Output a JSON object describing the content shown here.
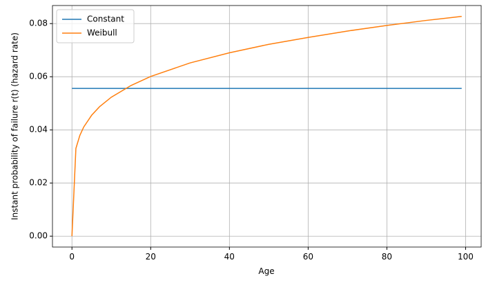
{
  "chart_data": {
    "type": "line",
    "xlabel": "Age",
    "ylabel": "Instant probability of failure r(t) (hazard rate)",
    "series": [
      {
        "name": "Constant",
        "color": "#1f77b4",
        "x": [
          0,
          99
        ],
        "values": [
          0.0556,
          0.0556
        ]
      },
      {
        "name": "Weibull",
        "color": "#ff7f0e",
        "x": [
          0,
          1,
          2,
          3,
          5,
          7,
          10,
          15,
          20,
          30,
          40,
          50,
          60,
          70,
          80,
          90,
          99
        ],
        "values": [
          0,
          0.033,
          0.0379,
          0.0411,
          0.0455,
          0.0487,
          0.0523,
          0.0567,
          0.0601,
          0.0652,
          0.069,
          0.0722,
          0.0748,
          0.0772,
          0.0793,
          0.0812,
          0.0827
        ]
      }
    ],
    "xlim": [
      -4.95,
      103.95
    ],
    "xticks": [
      0,
      20,
      40,
      60,
      80,
      100
    ],
    "ylim": [
      -0.0041,
      0.0868
    ],
    "yticks": [
      {
        "value": 0,
        "label": "0.00"
      },
      {
        "value": 0.02,
        "label": "0.02"
      },
      {
        "value": 0.04,
        "label": "0.04"
      },
      {
        "value": 0.06,
        "label": "0.06"
      },
      {
        "value": 0.08,
        "label": "0.08"
      }
    ],
    "grid": true,
    "legend": "upper-left"
  }
}
